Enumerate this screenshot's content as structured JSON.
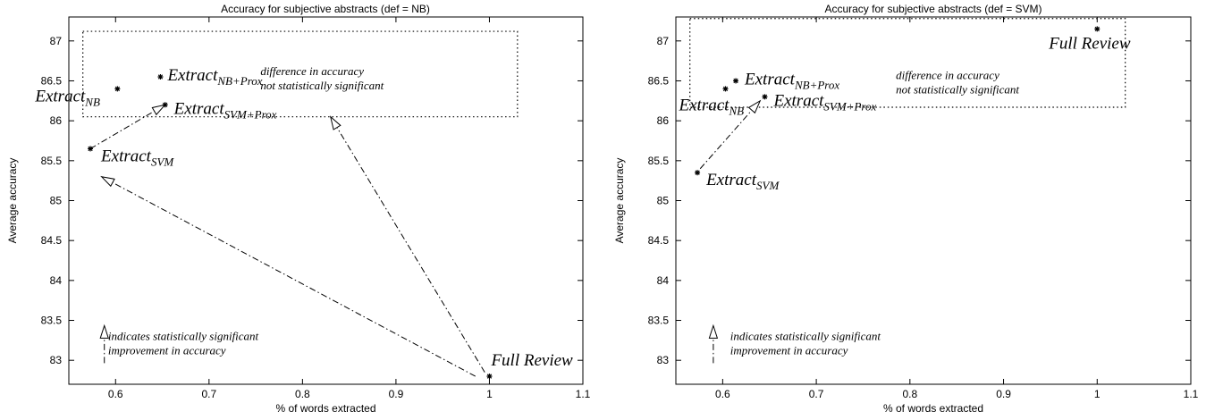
{
  "chart_data": [
    {
      "type": "scatter",
      "title": "Accuracy for subjective abstracts (def = NB)",
      "xlabel": "% of words extracted",
      "ylabel": "Average accuracy",
      "xlim": [
        0.55,
        1.1
      ],
      "ylim": [
        82.7,
        87.3
      ],
      "xticks": [
        "0.6",
        "0.7",
        "0.8",
        "0.9",
        "1",
        "1.1"
      ],
      "yticks": [
        "83",
        "83.5",
        "84",
        "84.5",
        "85",
        "85.5",
        "86",
        "86.5",
        "87"
      ],
      "grid": false,
      "points": [
        {
          "id": "nb",
          "x": 0.602,
          "y": 86.4,
          "label": "Extract",
          "sub": "NB"
        },
        {
          "id": "nbprox",
          "x": 0.648,
          "y": 86.55,
          "label": "Extract",
          "sub": "NB+Prox"
        },
        {
          "id": "svmprox",
          "x": 0.653,
          "y": 86.2,
          "label": "Extract",
          "sub": "SVM+Prox"
        },
        {
          "id": "svm",
          "x": 0.573,
          "y": 85.65,
          "label": "Extract",
          "sub": "SVM"
        },
        {
          "id": "full",
          "x": 1.0,
          "y": 82.8,
          "label": "Full Review",
          "sub": ""
        }
      ],
      "significance_box": {
        "x0": 0.565,
        "x1": 1.03,
        "y0": 86.05,
        "y1": 87.12
      },
      "box_note": [
        "difference in accuracy",
        "not statistically significant"
      ],
      "legend_note": [
        "indicates statistically significant",
        "improvement in accuracy"
      ],
      "arrows": [
        {
          "from": [
            0.573,
            85.65
          ],
          "to": [
            0.653,
            86.2
          ]
        },
        {
          "from": [
            0.985,
            82.8
          ],
          "to": [
            0.585,
            85.3
          ]
        },
        {
          "from": [
            0.995,
            82.85
          ],
          "to": [
            0.83,
            86.05
          ]
        }
      ]
    },
    {
      "type": "scatter",
      "title": "Accuracy for subjective abstracts (def = SVM)",
      "xlabel": "% of words extracted",
      "ylabel": "Average accuracy",
      "xlim": [
        0.55,
        1.1
      ],
      "ylim": [
        82.7,
        87.3
      ],
      "xticks": [
        "0.6",
        "0.7",
        "0.8",
        "0.9",
        "1",
        "1.1"
      ],
      "yticks": [
        "83",
        "83.5",
        "84",
        "84.5",
        "85",
        "85.5",
        "86",
        "86.5",
        "87"
      ],
      "grid": false,
      "points": [
        {
          "id": "nb",
          "x": 0.603,
          "y": 86.4,
          "label": "Extract",
          "sub": "NB"
        },
        {
          "id": "nbprox",
          "x": 0.614,
          "y": 86.5,
          "label": "Extract",
          "sub": "NB+Prox"
        },
        {
          "id": "svmprox",
          "x": 0.645,
          "y": 86.3,
          "label": "Extract",
          "sub": "SVM+Prox"
        },
        {
          "id": "svm",
          "x": 0.573,
          "y": 85.35,
          "label": "Extract",
          "sub": "SVM"
        },
        {
          "id": "full",
          "x": 1.0,
          "y": 87.15,
          "label": "Full Review",
          "sub": ""
        }
      ],
      "significance_box": {
        "x0": 0.565,
        "x1": 1.03,
        "y0": 86.17,
        "y1": 87.28
      },
      "box_note": [
        "difference in accuracy",
        "not statistically significant"
      ],
      "legend_note": [
        "indicates statistically significant",
        "improvement in accuracy"
      ],
      "arrows": [
        {
          "from": [
            0.576,
            85.4
          ],
          "to": [
            0.64,
            86.25
          ]
        }
      ]
    }
  ]
}
